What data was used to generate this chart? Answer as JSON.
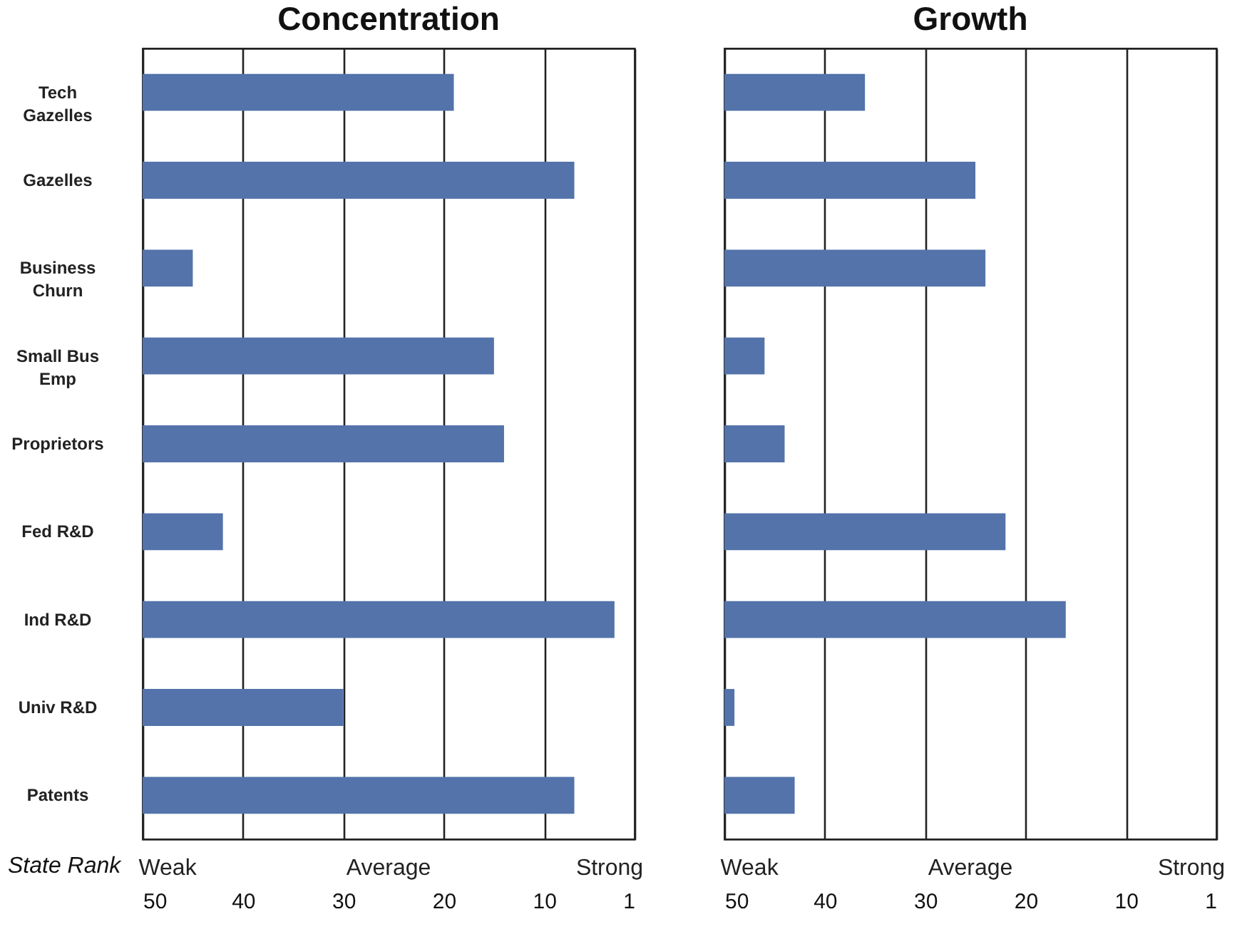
{
  "chart_data": [
    {
      "type": "bar",
      "orientation": "horizontal",
      "title": "Concentration",
      "xlabel": "State Rank",
      "categories": [
        "Tech Gazelles",
        "Gazelles",
        "Business Churn",
        "Small Bus Emp",
        "Proprietors",
        "Fed R&D",
        "Ind R&D",
        "Univ R&D",
        "Patents"
      ],
      "base": [
        50,
        50,
        50,
        50,
        50,
        50,
        50,
        50,
        50
      ],
      "values": [
        -31,
        -43,
        -5,
        -35,
        -36,
        -8,
        -47,
        -20,
        -43
      ],
      "color": "#5373aa",
      "xlim": [
        50,
        1
      ],
      "xticks": [
        50,
        40,
        30,
        20,
        10,
        1
      ],
      "grid": "x",
      "annotations": [
        "Weak",
        "Average",
        "Strong"
      ]
    },
    {
      "type": "bar",
      "orientation": "horizontal",
      "title": "Growth",
      "categories": [
        null,
        null,
        null,
        null,
        null,
        null,
        null,
        null,
        null
      ],
      "base": [
        50,
        50,
        50,
        50,
        50,
        50,
        50,
        50,
        50
      ],
      "values": [
        -14,
        -25,
        -26,
        -4,
        -6,
        -28,
        -34,
        -1,
        -7
      ],
      "color": "#5373aa",
      "xlim": [
        50,
        1
      ],
      "xticks": [
        50,
        40,
        30,
        20,
        10,
        1
      ],
      "grid": "x",
      "tick_labels": "x",
      "annotations": [
        "Weak",
        "Average",
        "Strong"
      ]
    }
  ]
}
